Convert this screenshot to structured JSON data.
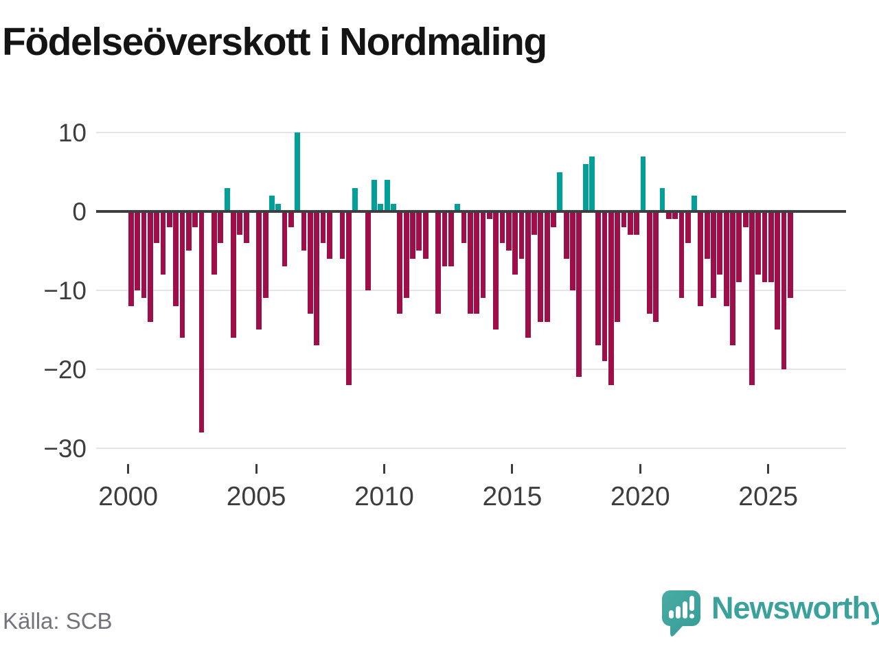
{
  "title": "Födelseöverskott i Nordmaling",
  "source": "Källa: SCB",
  "branding": {
    "logo_text": "Newsworthy"
  },
  "colors": {
    "positive": "#00a099",
    "negative": "#9e0e49",
    "axis_line": "#3e3e40",
    "gridline": "#e4e4e6",
    "tick_label": "#3d3d3d",
    "source_text": "#73737b",
    "brand_teal": "#3aa29b",
    "title_text": "#141414"
  },
  "chart_data": {
    "type": "bar",
    "title": "Födelseöverskott i Nordmaling",
    "frequency": "quarterly",
    "start_year": 2000,
    "start_quarter": 1,
    "ylim": [
      -32,
      11
    ],
    "grid": "horizontal",
    "legend": "none",
    "y_ticks": [
      {
        "value": 10,
        "label": "10"
      },
      {
        "value": 0,
        "label": "0"
      },
      {
        "value": -10,
        "label": "−10"
      },
      {
        "value": -20,
        "label": "−20"
      },
      {
        "value": -30,
        "label": "−30"
      }
    ],
    "x_ticks": [
      "2000",
      "2005",
      "2010",
      "2015",
      "2020",
      "2025"
    ],
    "values": [
      -12,
      -10,
      -11,
      -14,
      -4,
      -8,
      -2,
      -12,
      -16,
      -5,
      -2,
      -28,
      0,
      -8,
      -4,
      3,
      -16,
      -3,
      -4,
      0,
      -15,
      -11,
      2,
      1,
      -7,
      -2,
      10,
      -5,
      -13,
      -17,
      -4,
      -6,
      0,
      -6,
      -22,
      3,
      0,
      -10,
      4,
      1,
      4,
      1,
      -13,
      -11,
      -6,
      -5,
      -6,
      0,
      -13,
      -7,
      -7,
      1,
      -4,
      -13,
      -13,
      -11,
      -1,
      -15,
      -4,
      -5,
      -8,
      -6,
      -16,
      -3,
      -14,
      -14,
      -2,
      5,
      -6,
      -10,
      -21,
      6,
      7,
      -17,
      -19,
      -22,
      -14,
      -2,
      -3,
      -3,
      7,
      -13,
      -14,
      3,
      -1,
      -1,
      -11,
      -4,
      2,
      -12,
      -6,
      -11,
      -8,
      -12,
      -17,
      -9,
      -2,
      -22,
      -8,
      -9,
      -9,
      -15,
      -20,
      -11
    ]
  }
}
